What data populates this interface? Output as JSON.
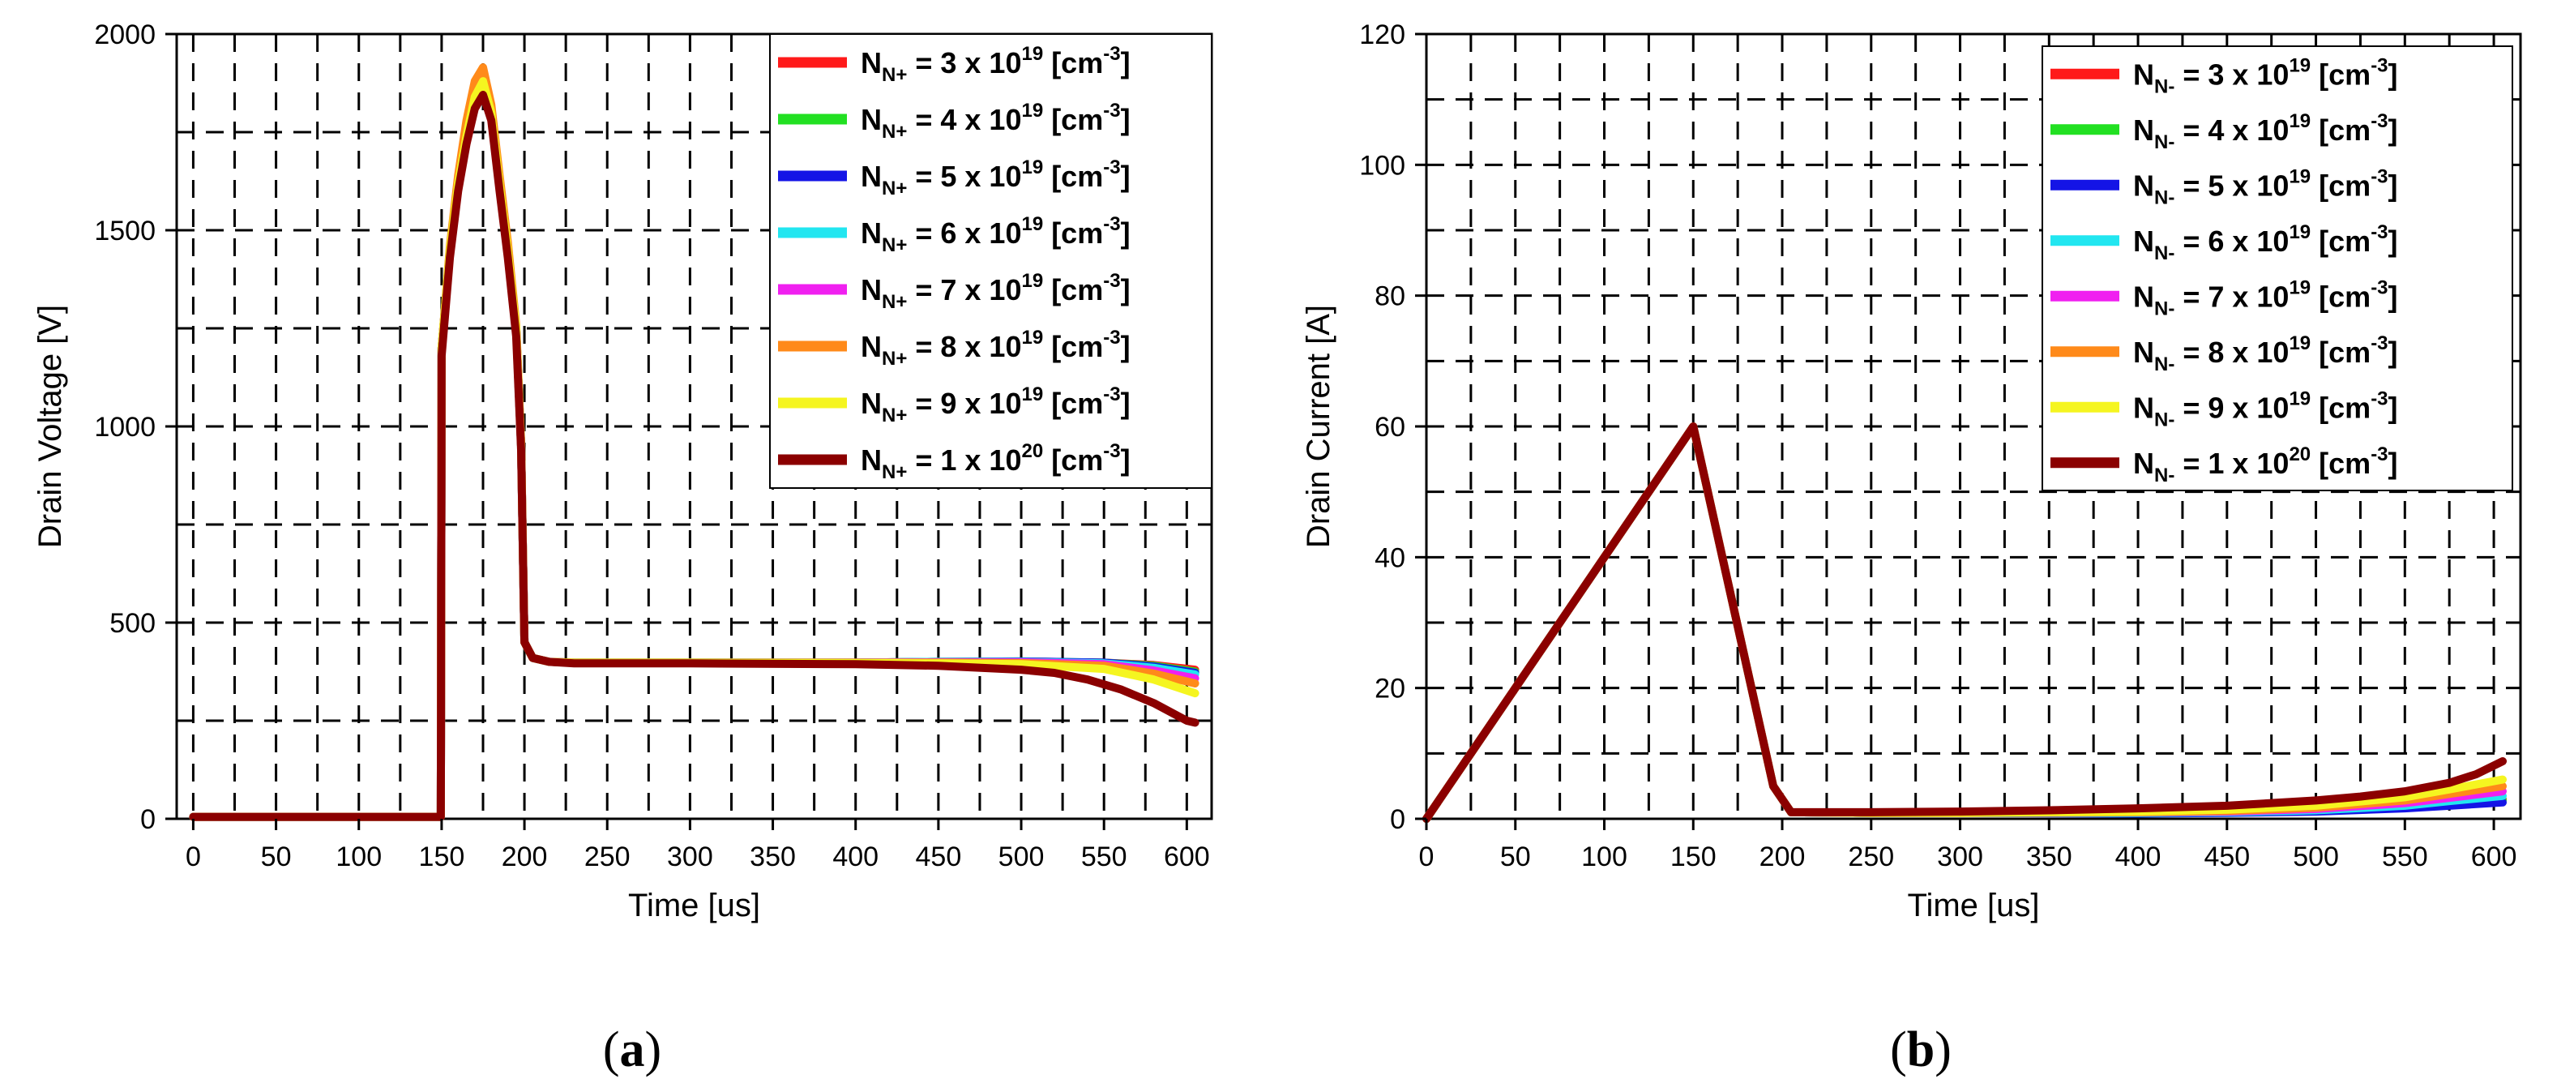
{
  "chart_data": [
    {
      "type": "line",
      "panel_label": "a",
      "title": "",
      "xlabel": "Time [us]",
      "ylabel": "Drain Voltage [V]",
      "xlim": [
        -10,
        615
      ],
      "ylim": [
        0,
        2000
      ],
      "x_ticks": [
        0,
        50,
        100,
        150,
        200,
        250,
        300,
        350,
        400,
        450,
        500,
        550,
        600
      ],
      "y_ticks": [
        0,
        500,
        1000,
        1500,
        2000
      ],
      "x_grid": [
        0,
        25,
        50,
        75,
        100,
        125,
        150,
        175,
        200,
        225,
        250,
        275,
        300,
        325,
        350,
        375,
        400,
        425,
        450,
        475,
        500,
        525,
        550,
        575,
        600
      ],
      "y_grid": [
        250,
        500,
        750,
        1000,
        1250,
        1500,
        1750,
        2000
      ],
      "legend_position": "top-right",
      "series": [
        {
          "name": "N_N+ = 3 x 10^19 [cm^-3]",
          "label_parts": [
            "N",
            "N+",
            " = 3 x 10",
            "19",
            " [cm",
            "-3",
            "]"
          ],
          "color": "#ff1a1a",
          "x": [
            0,
            149.5,
            150,
            155,
            160,
            165,
            170,
            175,
            180,
            185,
            190,
            195,
            198,
            200,
            205,
            215,
            230,
            300,
            400,
            450,
            500,
            550,
            580,
            605
          ],
          "y": [
            5,
            5,
            1200,
            1450,
            1620,
            1740,
            1840,
            1875,
            1800,
            1620,
            1450,
            1250,
            950,
            450,
            410,
            400,
            398,
            398,
            398,
            400,
            400,
            398,
            392,
            380
          ]
        },
        {
          "name": "N_N+ = 4 x 10^19 [cm^-3]",
          "label_parts": [
            "N",
            "N+",
            " = 4 x 10",
            "19",
            " [cm",
            "-3",
            "]"
          ],
          "color": "#22e022",
          "x": [
            0,
            149.5,
            150,
            155,
            160,
            165,
            170,
            175,
            180,
            185,
            190,
            195,
            198,
            200,
            205,
            215,
            230,
            300,
            400,
            450,
            500,
            550,
            580,
            605
          ],
          "y": [
            5,
            5,
            1200,
            1450,
            1620,
            1740,
            1840,
            1875,
            1800,
            1620,
            1450,
            1250,
            950,
            450,
            410,
            400,
            398,
            398,
            398,
            400,
            401,
            398,
            390,
            375
          ]
        },
        {
          "name": "N_N+ = 5 x 10^19 [cm^-3]",
          "label_parts": [
            "N",
            "N+",
            " = 5 x 10",
            "19",
            " [cm",
            "-3",
            "]"
          ],
          "color": "#1414e6",
          "x": [
            0,
            149.5,
            150,
            155,
            160,
            165,
            170,
            175,
            180,
            185,
            190,
            195,
            198,
            200,
            205,
            215,
            230,
            300,
            400,
            450,
            500,
            550,
            580,
            605
          ],
          "y": [
            5,
            5,
            1200,
            1450,
            1620,
            1740,
            1840,
            1875,
            1800,
            1620,
            1450,
            1250,
            950,
            450,
            410,
            400,
            398,
            398,
            398,
            400,
            401,
            398,
            388,
            372
          ]
        },
        {
          "name": "N_N+ = 6 x 10^19 [cm^-3]",
          "label_parts": [
            "N",
            "N+",
            " = 6 x 10",
            "19",
            " [cm",
            "-3",
            "]"
          ],
          "color": "#22e6f0",
          "x": [
            0,
            149.5,
            150,
            155,
            160,
            165,
            170,
            175,
            180,
            185,
            190,
            195,
            198,
            200,
            205,
            215,
            230,
            300,
            400,
            450,
            500,
            550,
            580,
            605
          ],
          "y": [
            5,
            5,
            1200,
            1450,
            1620,
            1740,
            1840,
            1880,
            1800,
            1620,
            1450,
            1250,
            950,
            450,
            410,
            400,
            398,
            398,
            398,
            400,
            400,
            396,
            385,
            368
          ]
        },
        {
          "name": "N_N+ = 7 x 10^19 [cm^-3]",
          "label_parts": [
            "N",
            "N+",
            " = 7 x 10",
            "19",
            " [cm",
            "-3",
            "]"
          ],
          "color": "#f020f0",
          "x": [
            0,
            149.5,
            150,
            155,
            160,
            165,
            170,
            175,
            180,
            185,
            190,
            195,
            198,
            200,
            205,
            215,
            230,
            300,
            400,
            450,
            500,
            550,
            580,
            605
          ],
          "y": [
            5,
            5,
            1200,
            1450,
            1620,
            1740,
            1840,
            1885,
            1800,
            1620,
            1450,
            1250,
            950,
            450,
            410,
            400,
            398,
            398,
            398,
            399,
            399,
            394,
            378,
            358
          ]
        },
        {
          "name": "N_N+ = 8 x 10^19 [cm^-3]",
          "label_parts": [
            "N",
            "N+",
            " = 8 x 10",
            "19",
            " [cm",
            "-3",
            "]"
          ],
          "color": "#ff8a1a",
          "x": [
            0,
            149.5,
            150,
            155,
            160,
            165,
            170,
            175,
            180,
            185,
            190,
            195,
            198,
            200,
            205,
            215,
            230,
            300,
            400,
            450,
            500,
            550,
            580,
            605
          ],
          "y": [
            5,
            5,
            1200,
            1460,
            1640,
            1780,
            1880,
            1915,
            1820,
            1640,
            1470,
            1260,
            960,
            450,
            410,
            400,
            398,
            398,
            398,
            398,
            397,
            390,
            370,
            345
          ]
        },
        {
          "name": "N_N+ = 9 x 10^19 [cm^-3]",
          "label_parts": [
            "N",
            "N+",
            " = 9 x 10",
            "19",
            " [cm",
            "-3",
            "]"
          ],
          "color": "#f5f520",
          "x": [
            0,
            149.5,
            150,
            155,
            160,
            165,
            170,
            175,
            180,
            185,
            190,
            195,
            198,
            200,
            205,
            215,
            230,
            300,
            400,
            450,
            500,
            550,
            580,
            605
          ],
          "y": [
            5,
            5,
            1200,
            1450,
            1620,
            1740,
            1840,
            1880,
            1800,
            1620,
            1450,
            1250,
            950,
            450,
            410,
            400,
            398,
            398,
            397,
            396,
            394,
            382,
            355,
            320
          ]
        },
        {
          "name": "N_N+ = 1 x 10^20 [cm^-3]",
          "label_parts": [
            "N",
            "N+",
            " = 1 x 10",
            "20",
            " [cm",
            "-3",
            "]"
          ],
          "color": "#8b0000",
          "x": [
            0,
            149.5,
            150,
            155,
            160,
            165,
            170,
            175,
            180,
            185,
            190,
            195,
            198,
            200,
            205,
            215,
            230,
            300,
            400,
            450,
            500,
            520,
            540,
            560,
            580,
            600,
            605
          ],
          "y": [
            5,
            5,
            1180,
            1430,
            1600,
            1720,
            1810,
            1845,
            1780,
            1600,
            1430,
            1230,
            940,
            450,
            410,
            400,
            396,
            396,
            394,
            390,
            380,
            372,
            355,
            330,
            295,
            250,
            245
          ]
        }
      ]
    },
    {
      "type": "line",
      "panel_label": "b",
      "title": "",
      "xlabel": "Time [us]",
      "ylabel": "Drain Current [A]",
      "xlim": [
        0,
        615
      ],
      "ylim": [
        0,
        120
      ],
      "x_ticks": [
        0,
        50,
        100,
        150,
        200,
        250,
        300,
        350,
        400,
        450,
        500,
        550,
        600
      ],
      "y_ticks": [
        0,
        20,
        40,
        60,
        80,
        100,
        120
      ],
      "x_grid": [
        25,
        50,
        75,
        100,
        125,
        150,
        175,
        200,
        225,
        250,
        275,
        300,
        325,
        350,
        375,
        400,
        425,
        450,
        475,
        500,
        525,
        550,
        575,
        600
      ],
      "y_grid": [
        10,
        20,
        30,
        40,
        50,
        60,
        70,
        80,
        90,
        100,
        110
      ],
      "legend_position": "top-right",
      "series": [
        {
          "name": "N_N- = 3 x 10^19 [cm^-3]",
          "label_parts": [
            "N",
            "N-",
            " = 3 x 10",
            "19",
            " [cm",
            "-3",
            "]"
          ],
          "color": "#ff1a1a",
          "x": [
            0,
            150,
            195,
            205,
            250,
            300,
            400,
            450,
            500,
            550,
            575,
            605
          ],
          "y": [
            0,
            60,
            5,
            1,
            0.9,
            0.9,
            0.9,
            1.0,
            1.2,
            1.8,
            2.3,
            3.0
          ]
        },
        {
          "name": "N_N- = 4 x 10^19 [cm^-3]",
          "label_parts": [
            "N",
            "N-",
            " = 4 x 10",
            "19",
            " [cm",
            "-3",
            "]"
          ],
          "color": "#22e022",
          "x": [
            0,
            150,
            195,
            205,
            250,
            300,
            400,
            450,
            500,
            550,
            575,
            605
          ],
          "y": [
            0,
            60,
            5,
            1,
            0.9,
            0.9,
            0.9,
            1.0,
            1.2,
            1.7,
            2.2,
            2.8
          ]
        },
        {
          "name": "N_N- = 5 x 10^19 [cm^-3]",
          "label_parts": [
            "N",
            "N-",
            " = 5 x 10",
            "19",
            " [cm",
            "-3",
            "]"
          ],
          "color": "#1414e6",
          "x": [
            0,
            150,
            195,
            205,
            250,
            300,
            400,
            450,
            500,
            550,
            575,
            605
          ],
          "y": [
            0,
            60,
            5,
            1,
            0.9,
            0.9,
            0.8,
            0.9,
            1.1,
            1.6,
            2.0,
            2.5
          ]
        },
        {
          "name": "N_N- = 6 x 10^19 [cm^-3]",
          "label_parts": [
            "N",
            "N-",
            " = 6 x 10",
            "19",
            " [cm",
            "-3",
            "]"
          ],
          "color": "#22e6f0",
          "x": [
            0,
            150,
            195,
            205,
            250,
            300,
            400,
            450,
            500,
            550,
            575,
            605
          ],
          "y": [
            0,
            60,
            5,
            1,
            0.9,
            0.9,
            0.9,
            1.0,
            1.3,
            2.0,
            2.7,
            3.5
          ]
        },
        {
          "name": "N_N- = 7 x 10^19 [cm^-3]",
          "label_parts": [
            "N",
            "N-",
            " = 7 x 10",
            "19",
            " [cm",
            "-3",
            "]"
          ],
          "color": "#f020f0",
          "x": [
            0,
            150,
            195,
            205,
            250,
            300,
            400,
            450,
            500,
            550,
            575,
            605
          ],
          "y": [
            0,
            60,
            5,
            1,
            0.9,
            0.9,
            1.0,
            1.1,
            1.5,
            2.4,
            3.2,
            4.2
          ]
        },
        {
          "name": "N_N- = 8 x 10^19 [cm^-3]",
          "label_parts": [
            "N",
            "N-",
            " = 8 x 10",
            "19",
            " [cm",
            "-3",
            "]"
          ],
          "color": "#ff8a1a",
          "x": [
            0,
            150,
            195,
            205,
            250,
            300,
            400,
            450,
            500,
            550,
            575,
            605
          ],
          "y": [
            0,
            60,
            5,
            1,
            0.9,
            0.9,
            1.0,
            1.2,
            1.7,
            2.8,
            3.8,
            5.0
          ]
        },
        {
          "name": "N_N- = 9 x 10^19 [cm^-3]",
          "label_parts": [
            "N",
            "N-",
            " = 9 x 10",
            "19",
            " [cm",
            "-3",
            "]"
          ],
          "color": "#f5f520",
          "x": [
            0,
            150,
            195,
            205,
            250,
            300,
            400,
            450,
            500,
            550,
            575,
            605
          ],
          "y": [
            0,
            60,
            5,
            1,
            0.9,
            0.9,
            1.1,
            1.4,
            2.0,
            3.3,
            4.5,
            6.0
          ]
        },
        {
          "name": "N_N- = 1 x 10^20 [cm^-3]",
          "label_parts": [
            "N",
            "N-",
            " = 1 x 10",
            "20",
            " [cm",
            "-3",
            "]"
          ],
          "color": "#8b0000",
          "x": [
            0,
            150,
            195,
            205,
            250,
            300,
            350,
            400,
            450,
            500,
            525,
            550,
            575,
            590,
            605
          ],
          "y": [
            0,
            60,
            5,
            1,
            1.0,
            1.1,
            1.3,
            1.6,
            2.0,
            2.8,
            3.4,
            4.2,
            5.5,
            6.8,
            8.8
          ]
        }
      ]
    }
  ]
}
